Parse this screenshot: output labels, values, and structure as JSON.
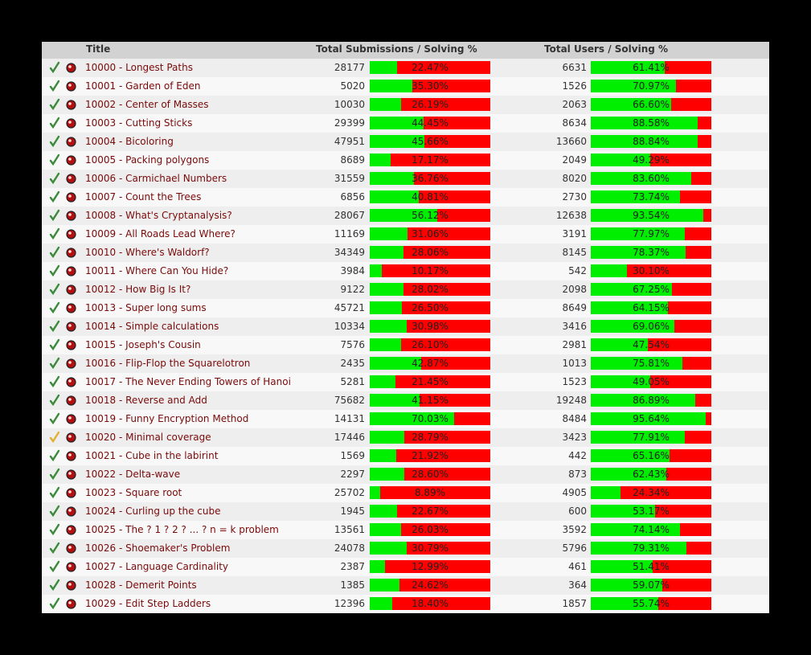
{
  "header": {
    "title": "Title",
    "submissions": "Total Submissions / Solving %",
    "users": "Total Users / Solving %"
  },
  "colors": {
    "solved": "#00ee00",
    "unsolved": "#ff0000",
    "title_link": "#7a0a0a"
  },
  "problems": [
    {
      "title": "10000 - Longest Paths",
      "submissions": "28177",
      "sub_pct": "22.47%",
      "users": "6631",
      "usr_pct": "61.41%",
      "status": "accepted"
    },
    {
      "title": "10001 - Garden of Eden",
      "submissions": "5020",
      "sub_pct": "35.30%",
      "users": "1526",
      "usr_pct": "70.97%",
      "status": "accepted"
    },
    {
      "title": "10002 - Center of Masses",
      "submissions": "10030",
      "sub_pct": "26.19%",
      "users": "2063",
      "usr_pct": "66.60%",
      "status": "accepted"
    },
    {
      "title": "10003 - Cutting Sticks",
      "submissions": "29399",
      "sub_pct": "44.45%",
      "users": "8634",
      "usr_pct": "88.58%",
      "status": "accepted"
    },
    {
      "title": "10004 - Bicoloring",
      "submissions": "47951",
      "sub_pct": "45.66%",
      "users": "13660",
      "usr_pct": "88.84%",
      "status": "accepted"
    },
    {
      "title": "10005 - Packing polygons",
      "submissions": "8689",
      "sub_pct": "17.17%",
      "users": "2049",
      "usr_pct": "49.29%",
      "status": "accepted"
    },
    {
      "title": "10006 - Carmichael Numbers",
      "submissions": "31559",
      "sub_pct": "36.76%",
      "users": "8020",
      "usr_pct": "83.60%",
      "status": "accepted"
    },
    {
      "title": "10007 - Count the Trees",
      "submissions": "6856",
      "sub_pct": "40.81%",
      "users": "2730",
      "usr_pct": "73.74%",
      "status": "accepted"
    },
    {
      "title": "10008 - What's Cryptanalysis?",
      "submissions": "28067",
      "sub_pct": "56.12%",
      "users": "12638",
      "usr_pct": "93.54%",
      "status": "accepted"
    },
    {
      "title": "10009 - All Roads Lead Where?",
      "submissions": "11169",
      "sub_pct": "31.06%",
      "users": "3191",
      "usr_pct": "77.97%",
      "status": "accepted"
    },
    {
      "title": "10010 - Where's Waldorf?",
      "submissions": "34349",
      "sub_pct": "28.06%",
      "users": "8145",
      "usr_pct": "78.37%",
      "status": "accepted"
    },
    {
      "title": "10011 - Where Can You Hide?",
      "submissions": "3984",
      "sub_pct": "10.17%",
      "users": "542",
      "usr_pct": "30.10%",
      "status": "accepted"
    },
    {
      "title": "10012 - How Big Is It?",
      "submissions": "9122",
      "sub_pct": "28.02%",
      "users": "2098",
      "usr_pct": "67.25%",
      "status": "accepted"
    },
    {
      "title": "10013 - Super long sums",
      "submissions": "45721",
      "sub_pct": "26.50%",
      "users": "8649",
      "usr_pct": "64.15%",
      "status": "accepted"
    },
    {
      "title": "10014 - Simple calculations",
      "submissions": "10334",
      "sub_pct": "30.98%",
      "users": "3416",
      "usr_pct": "69.06%",
      "status": "accepted"
    },
    {
      "title": "10015 - Joseph's Cousin",
      "submissions": "7576",
      "sub_pct": "26.10%",
      "users": "2981",
      "usr_pct": "47.54%",
      "status": "accepted"
    },
    {
      "title": "10016 - Flip-Flop the Squarelotron",
      "submissions": "2435",
      "sub_pct": "42.87%",
      "users": "1013",
      "usr_pct": "75.81%",
      "status": "accepted"
    },
    {
      "title": "10017 - The Never Ending Towers of Hanoi",
      "submissions": "5281",
      "sub_pct": "21.45%",
      "users": "1523",
      "usr_pct": "49.05%",
      "status": "accepted"
    },
    {
      "title": "10018 - Reverse and Add",
      "submissions": "75682",
      "sub_pct": "41.15%",
      "users": "19248",
      "usr_pct": "86.89%",
      "status": "accepted"
    },
    {
      "title": "10019 - Funny Encryption Method",
      "submissions": "14131",
      "sub_pct": "70.03%",
      "users": "8484",
      "usr_pct": "95.64%",
      "status": "accepted"
    },
    {
      "title": "10020 - Minimal coverage",
      "submissions": "17446",
      "sub_pct": "28.79%",
      "users": "3423",
      "usr_pct": "77.91%",
      "status": "tried"
    },
    {
      "title": "10021 - Cube in the labirint",
      "submissions": "1569",
      "sub_pct": "21.92%",
      "users": "442",
      "usr_pct": "65.16%",
      "status": "accepted"
    },
    {
      "title": "10022 - Delta-wave",
      "submissions": "2297",
      "sub_pct": "28.60%",
      "users": "873",
      "usr_pct": "62.43%",
      "status": "accepted"
    },
    {
      "title": "10023 - Square root",
      "submissions": "25702",
      "sub_pct": "8.89%",
      "users": "4905",
      "usr_pct": "24.34%",
      "status": "accepted"
    },
    {
      "title": "10024 - Curling up the cube",
      "submissions": "1945",
      "sub_pct": "22.67%",
      "users": "600",
      "usr_pct": "53.17%",
      "status": "accepted"
    },
    {
      "title": "10025 - The ? 1 ? 2 ? ... ? n = k problem",
      "submissions": "13561",
      "sub_pct": "26.03%",
      "users": "3592",
      "usr_pct": "74.14%",
      "status": "accepted"
    },
    {
      "title": "10026 - Shoemaker's Problem",
      "submissions": "24078",
      "sub_pct": "30.79%",
      "users": "5796",
      "usr_pct": "79.31%",
      "status": "accepted"
    },
    {
      "title": "10027 - Language Cardinality",
      "submissions": "2387",
      "sub_pct": "12.99%",
      "users": "461",
      "usr_pct": "51.41%",
      "status": "accepted"
    },
    {
      "title": "10028 - Demerit Points",
      "submissions": "1385",
      "sub_pct": "24.62%",
      "users": "364",
      "usr_pct": "59.07%",
      "status": "accepted"
    },
    {
      "title": "10029 - Edit Step Ladders",
      "submissions": "12396",
      "sub_pct": "18.40%",
      "users": "1857",
      "usr_pct": "55.74%",
      "status": "accepted"
    }
  ]
}
